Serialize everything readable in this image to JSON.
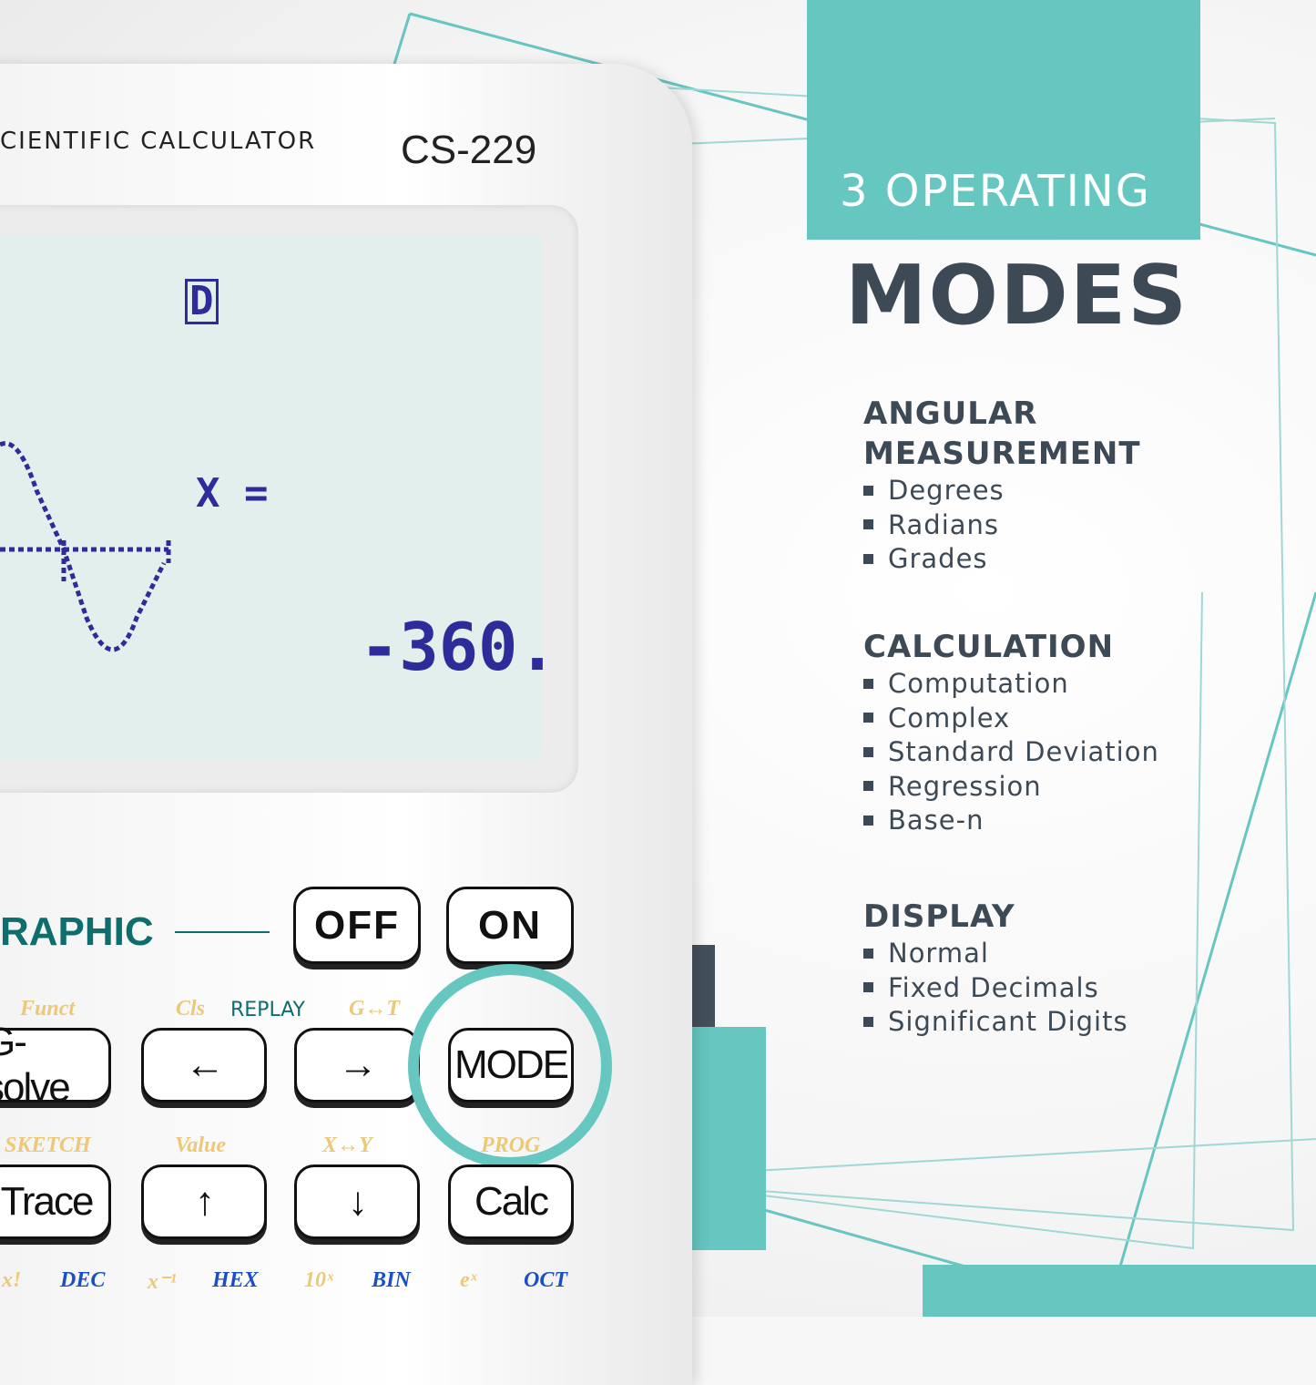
{
  "colors": {
    "accent": "#66c6c0",
    "dark": "#3d4a55",
    "lcd_text": "#2e2c9a",
    "lcd_bg": "#e3efec"
  },
  "calculator": {
    "brand": "CIENTIFIC CALCULATOR",
    "model": "CS-229",
    "lcd": {
      "indicator": "D",
      "label": "X =",
      "value": "-360."
    },
    "panel_label": "RAPHIC",
    "keys": {
      "off": "OFF",
      "on": "ON",
      "gsolve": "G-solve",
      "left": "←",
      "right": "→",
      "mode": "MODE",
      "trace": "Trace",
      "up": "↑",
      "down": "↓",
      "calc": "Calc"
    },
    "sub_labels": {
      "funct": "Funct",
      "cls": "Cls",
      "replay": "REPLAY",
      "g_t": "G↔T",
      "sketch": "SKETCH",
      "value": "Value",
      "x_y": "X↔Y",
      "prog": "PROG",
      "xfact": "x!",
      "dec": "DEC",
      "xinv": "x⁻¹",
      "hex": "HEX",
      "tenx": "10ˣ",
      "bin": "BIN",
      "ex": "eˣ",
      "oct": "OCT"
    }
  },
  "headline": {
    "line1": "3 OPERATING",
    "line2": "MODES"
  },
  "sections": [
    {
      "title": [
        "ANGULAR",
        "MEASUREMENT"
      ],
      "items": [
        "Degrees",
        "Radians",
        "Grades"
      ]
    },
    {
      "title": [
        "CALCULATION"
      ],
      "items": [
        "Computation",
        "Complex",
        "Standard Deviation",
        "Regression",
        "Base-n"
      ]
    },
    {
      "title": [
        "DISPLAY"
      ],
      "items": [
        "Normal",
        "Fixed Decimals",
        "Significant Digits"
      ]
    }
  ]
}
